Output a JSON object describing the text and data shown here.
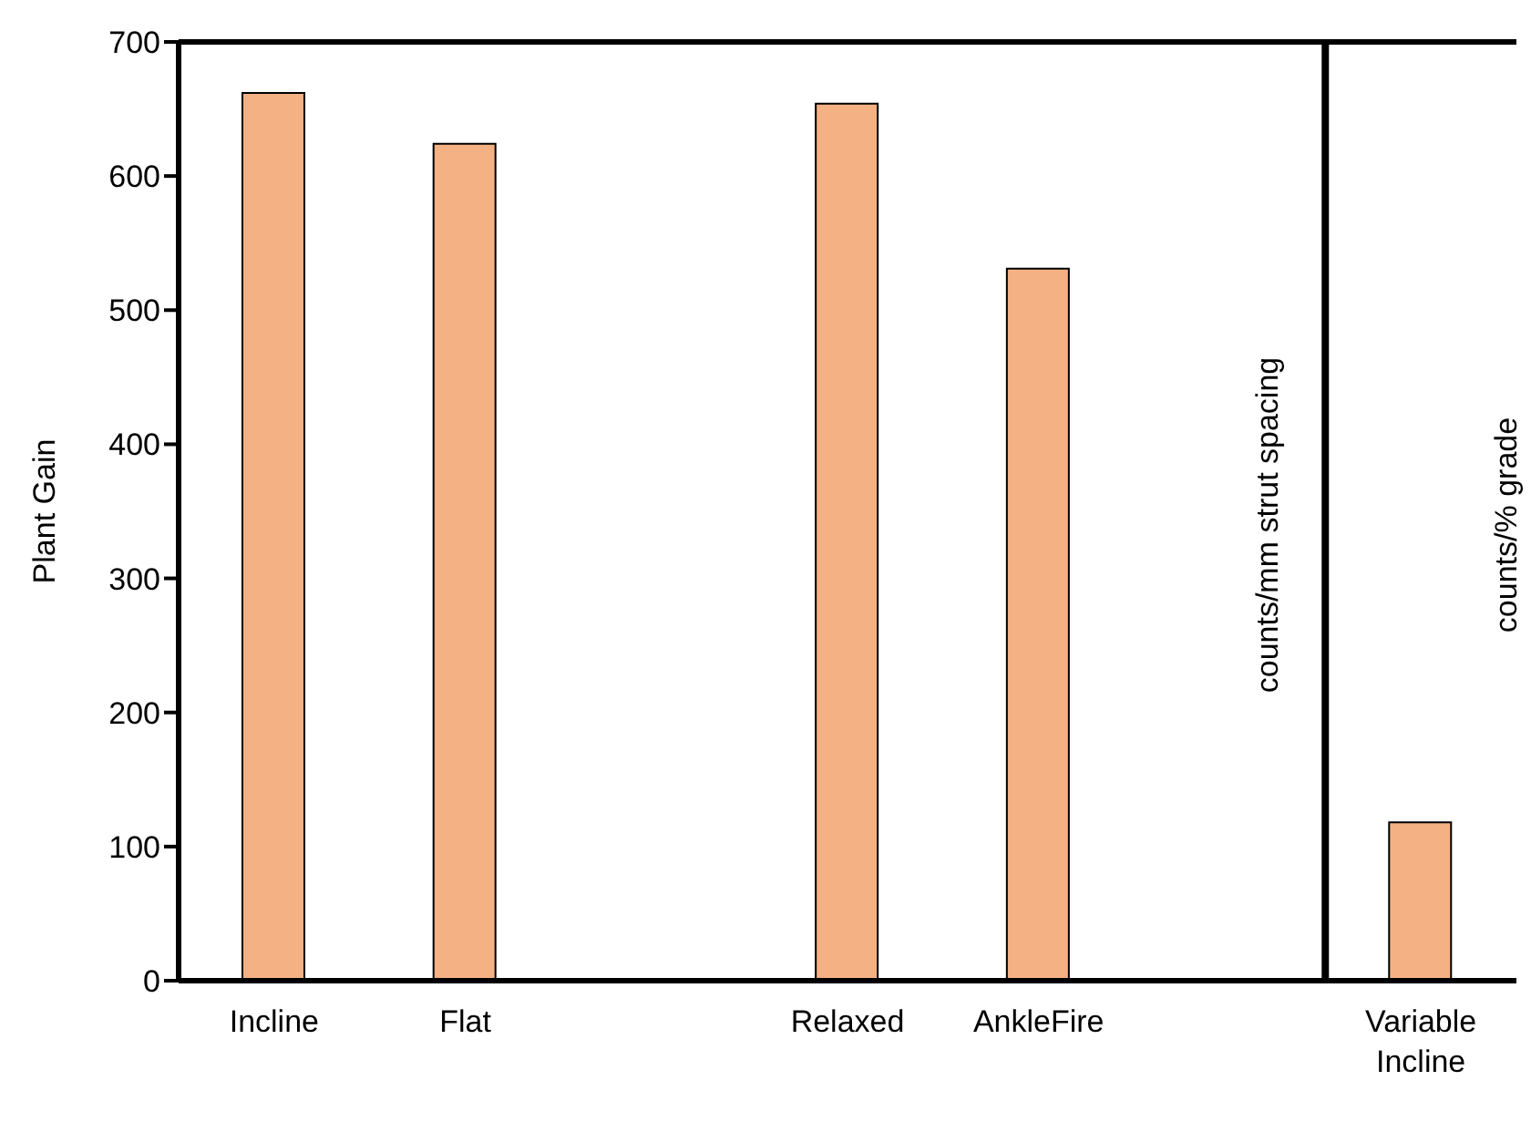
{
  "chart_data": {
    "type": "bar",
    "ylabel": "Plant Gain",
    "categories": [
      "Incline",
      "Flat",
      null,
      "Relaxed",
      "AnkleFire",
      null,
      "Variable Incline"
    ],
    "values": [
      662,
      624,
      null,
      654,
      531,
      null,
      118
    ],
    "color": "#f4b183",
    "ylim": [
      0,
      700
    ],
    "yticks": [
      0,
      100,
      200,
      300,
      400,
      500,
      600,
      700
    ],
    "grid": false,
    "legend": false,
    "annotations": [
      "counts/mm strut spacing",
      "counts/% grade"
    ]
  }
}
